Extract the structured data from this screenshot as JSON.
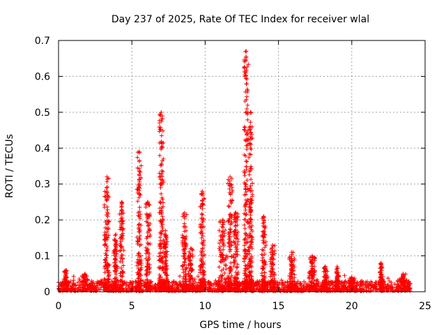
{
  "chart_data": {
    "type": "scatter",
    "title": "Day 237 of 2025, Rate Of TEC Index for receiver wlal",
    "xlabel": "GPS time / hours",
    "ylabel": "ROTI / TECUs",
    "xlim": [
      0,
      25
    ],
    "ylim": [
      0,
      0.7
    ],
    "x_ticks": [
      0,
      5,
      10,
      15,
      20,
      25
    ],
    "x_tick_labels": [
      "0",
      "5",
      "10",
      "15",
      "20",
      "25"
    ],
    "y_ticks": [
      0,
      0.1,
      0.2,
      0.3,
      0.4,
      0.5,
      0.6,
      0.7
    ],
    "y_tick_labels": [
      "0",
      "0.1",
      "0.2",
      "0.3",
      "0.4",
      "0.5",
      "0.6",
      "0.7"
    ],
    "grid": true,
    "marker": "+",
    "color": "#ff0000",
    "baseline": {
      "x_start": 0,
      "x_end": 24,
      "y_min": 0.002,
      "y_max": 0.03
    },
    "bursts": [
      {
        "x": 0.5,
        "width": 0.3,
        "peak": 0.06
      },
      {
        "x": 1.8,
        "width": 0.4,
        "peak": 0.05
      },
      {
        "x": 3.3,
        "width": 0.35,
        "peak": 0.32
      },
      {
        "x": 3.9,
        "width": 0.3,
        "peak": 0.16
      },
      {
        "x": 4.3,
        "width": 0.3,
        "peak": 0.25
      },
      {
        "x": 5.5,
        "width": 0.3,
        "peak": 0.39
      },
      {
        "x": 6.1,
        "width": 0.3,
        "peak": 0.25
      },
      {
        "x": 7.0,
        "width": 0.3,
        "peak": 0.5
      },
      {
        "x": 7.3,
        "width": 0.25,
        "peak": 0.17
      },
      {
        "x": 8.6,
        "width": 0.3,
        "peak": 0.22
      },
      {
        "x": 9.0,
        "width": 0.35,
        "peak": 0.12
      },
      {
        "x": 9.8,
        "width": 0.3,
        "peak": 0.28
      },
      {
        "x": 11.2,
        "width": 0.5,
        "peak": 0.2
      },
      {
        "x": 11.7,
        "width": 0.3,
        "peak": 0.32
      },
      {
        "x": 12.1,
        "width": 0.3,
        "peak": 0.22
      },
      {
        "x": 12.8,
        "width": 0.3,
        "peak": 0.67
      },
      {
        "x": 13.1,
        "width": 0.25,
        "peak": 0.5
      },
      {
        "x": 14.0,
        "width": 0.3,
        "peak": 0.21
      },
      {
        "x": 14.6,
        "width": 0.3,
        "peak": 0.13
      },
      {
        "x": 15.9,
        "width": 0.4,
        "peak": 0.11
      },
      {
        "x": 17.3,
        "width": 0.4,
        "peak": 0.1
      },
      {
        "x": 18.2,
        "width": 0.3,
        "peak": 0.07
      },
      {
        "x": 19.0,
        "width": 0.3,
        "peak": 0.07
      },
      {
        "x": 20.0,
        "width": 0.4,
        "peak": 0.04
      },
      {
        "x": 22.0,
        "width": 0.2,
        "peak": 0.08
      },
      {
        "x": 23.5,
        "width": 0.5,
        "peak": 0.05
      }
    ]
  }
}
